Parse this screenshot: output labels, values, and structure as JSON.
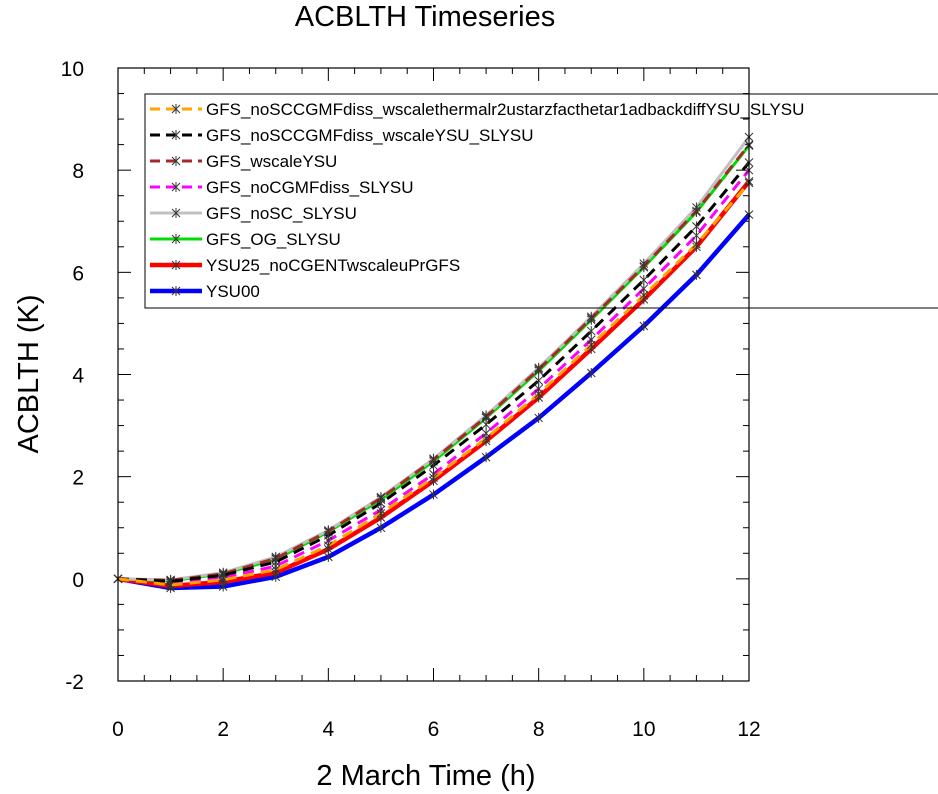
{
  "chart_data": {
    "type": "line",
    "title": "ACBLTH Timeseries",
    "xlabel": "2 March Time (h)",
    "ylabel": "ACBLTH (K)",
    "xlim": [
      0,
      12
    ],
    "ylim": [
      -2,
      10
    ],
    "x": [
      0,
      1,
      2,
      3,
      4,
      5,
      6,
      7,
      8,
      9,
      10,
      11,
      12
    ],
    "xticks": [
      0,
      2,
      4,
      6,
      8,
      10,
      12
    ],
    "yticks": [
      -2,
      0,
      2,
      4,
      6,
      8,
      10
    ],
    "grid": false,
    "legend_position": "top-left",
    "series": [
      {
        "name": "GFS_noSCCGMFdiss_wscalethermalr2ustarzfacthetar1adbackdiffYSU_SLYSU",
        "color": "#ffa500",
        "dash": "dashed",
        "values": [
          0,
          -0.12,
          -0.02,
          0.18,
          0.65,
          1.28,
          1.98,
          2.75,
          3.62,
          4.58,
          5.55,
          6.55,
          7.75
        ]
      },
      {
        "name": "GFS_noSCCGMFdiss_wscaleYSU_SLYSU",
        "color": "#000000",
        "dash": "dashed",
        "values": [
          0,
          -0.05,
          0.07,
          0.33,
          0.85,
          1.48,
          2.22,
          3.02,
          3.88,
          4.85,
          5.85,
          6.9,
          8.15
        ]
      },
      {
        "name": "GFS_wscaleYSU",
        "color": "#a52a2a",
        "dash": "dashed",
        "values": [
          0,
          -0.03,
          0.1,
          0.4,
          0.93,
          1.58,
          2.33,
          3.17,
          4.1,
          5.1,
          6.12,
          7.2,
          8.5
        ]
      },
      {
        "name": "GFS_noCGMFdiss_SLYSU",
        "color": "#ff00ff",
        "dash": "dashed",
        "values": [
          0,
          -0.08,
          0.02,
          0.25,
          0.75,
          1.35,
          2.05,
          2.85,
          3.72,
          4.68,
          5.68,
          6.72,
          8.0
        ]
      },
      {
        "name": "GFS_noSC_SLYSU",
        "color": "#c0c0c0",
        "dash": "solid",
        "values": [
          0,
          -0.02,
          0.12,
          0.43,
          0.95,
          1.6,
          2.35,
          3.2,
          4.13,
          5.13,
          6.17,
          7.27,
          8.65
        ]
      },
      {
        "name": "GFS_OG_SLYSU",
        "color": "#00dd00",
        "dash": "solid",
        "values": [
          0,
          -0.04,
          0.1,
          0.38,
          0.92,
          1.55,
          2.3,
          3.15,
          4.07,
          5.07,
          6.1,
          7.18,
          8.48
        ]
      },
      {
        "name": "YSU25_noCGENTwscaleuPrGFS",
        "color": "#ff0000",
        "dash": "solid",
        "values": [
          0,
          -0.14,
          -0.06,
          0.12,
          0.58,
          1.2,
          1.92,
          2.7,
          3.55,
          4.5,
          5.47,
          6.5,
          7.78
        ]
      },
      {
        "name": "YSU00",
        "color": "#0000ff",
        "dash": "solid",
        "values": [
          0,
          -0.18,
          -0.15,
          0.04,
          0.43,
          1.0,
          1.65,
          2.38,
          3.15,
          4.03,
          4.95,
          5.95,
          7.13
        ]
      }
    ]
  }
}
